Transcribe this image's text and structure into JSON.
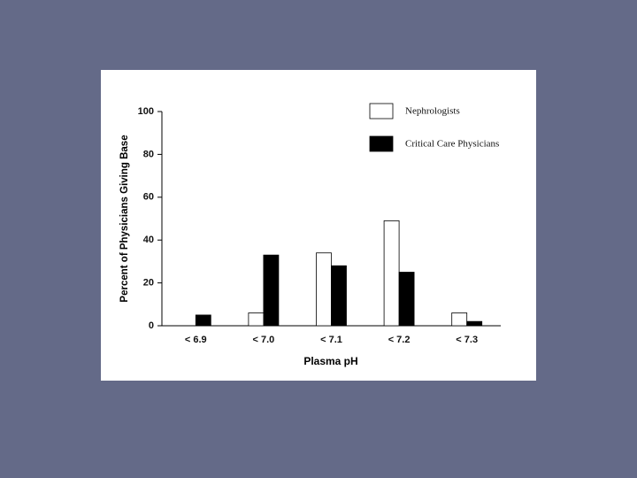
{
  "chart_data": {
    "type": "bar",
    "categories": [
      "< 6.9",
      "< 7.0",
      "< 7.1",
      "< 7.2",
      "< 7.3"
    ],
    "series": [
      {
        "name": "Nephrologists",
        "color": "#ffffff",
        "values": [
          0,
          6,
          34,
          49,
          6
        ]
      },
      {
        "name": "Critical Care Physicians",
        "color": "#000000",
        "values": [
          5,
          33,
          28,
          25,
          2
        ]
      }
    ],
    "xlabel": "Plasma pH",
    "ylabel": "Percent of Physicians Giving Base",
    "ylim": [
      0,
      100
    ],
    "yticks": [
      0,
      20,
      40,
      60,
      80,
      100
    ],
    "legend": "upper right"
  }
}
